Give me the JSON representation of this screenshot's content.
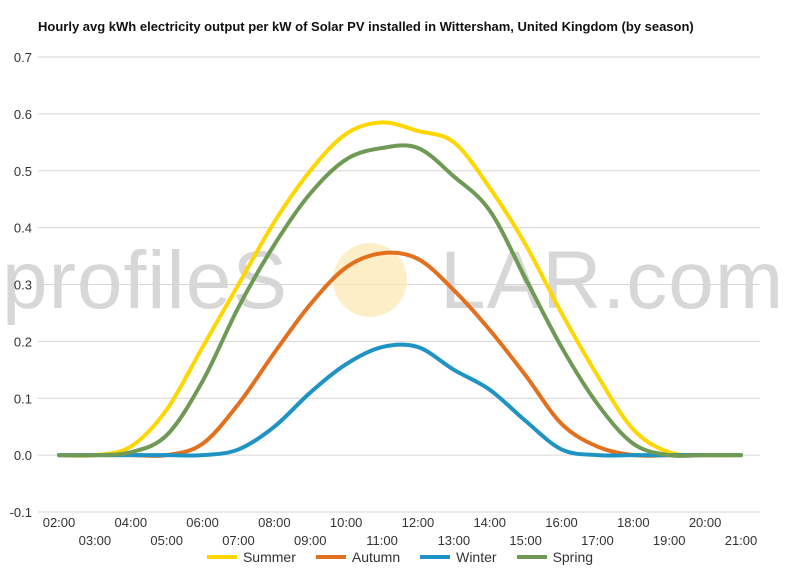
{
  "chart_data": {
    "type": "line",
    "title": "Hourly avg kWh electricity output per kW of Solar PV installed in Wittersham, United Kingdom (by season)",
    "x": [
      "02:00",
      "03:00",
      "04:00",
      "05:00",
      "06:00",
      "07:00",
      "08:00",
      "09:00",
      "10:00",
      "11:00",
      "12:00",
      "13:00",
      "14:00",
      "15:00",
      "16:00",
      "17:00",
      "18:00",
      "19:00",
      "20:00",
      "21:00"
    ],
    "ylim": [
      -0.1,
      0.7
    ],
    "yticks": [
      -0.1,
      0.0,
      0.1,
      0.2,
      0.3,
      0.4,
      0.5,
      0.6,
      0.7
    ],
    "ytick_labels": [
      "-0.1",
      "0.0",
      "0.1",
      "0.2",
      "0.3",
      "0.4",
      "0.5",
      "0.6",
      "0.7"
    ],
    "grid": true,
    "legend_position": "bottom",
    "series": [
      {
        "name": "Summer",
        "color": "#ffd700",
        "values": [
          0,
          0,
          0.015,
          0.08,
          0.19,
          0.3,
          0.41,
          0.5,
          0.565,
          0.585,
          0.57,
          0.55,
          0.47,
          0.37,
          0.25,
          0.14,
          0.045,
          0.005,
          0,
          0
        ]
      },
      {
        "name": "Autumn",
        "color": "#e3701e",
        "values": [
          0,
          0,
          0,
          0,
          0.02,
          0.09,
          0.18,
          0.265,
          0.33,
          0.355,
          0.345,
          0.29,
          0.22,
          0.14,
          0.055,
          0.015,
          0,
          0,
          0,
          0
        ]
      },
      {
        "name": "Winter",
        "color": "#1e93c4",
        "values": [
          0,
          0,
          0,
          0,
          0,
          0.01,
          0.05,
          0.11,
          0.16,
          0.19,
          0.19,
          0.15,
          0.115,
          0.06,
          0.01,
          0,
          0,
          0,
          0,
          0
        ]
      },
      {
        "name": "Spring",
        "color": "#6f9a56",
        "values": [
          0,
          0,
          0.005,
          0.035,
          0.13,
          0.26,
          0.37,
          0.46,
          0.52,
          0.54,
          0.54,
          0.49,
          0.43,
          0.31,
          0.19,
          0.09,
          0.02,
          0,
          0,
          0
        ]
      }
    ]
  },
  "watermark": {
    "before": "profileS",
    "after": "LAR.com"
  }
}
